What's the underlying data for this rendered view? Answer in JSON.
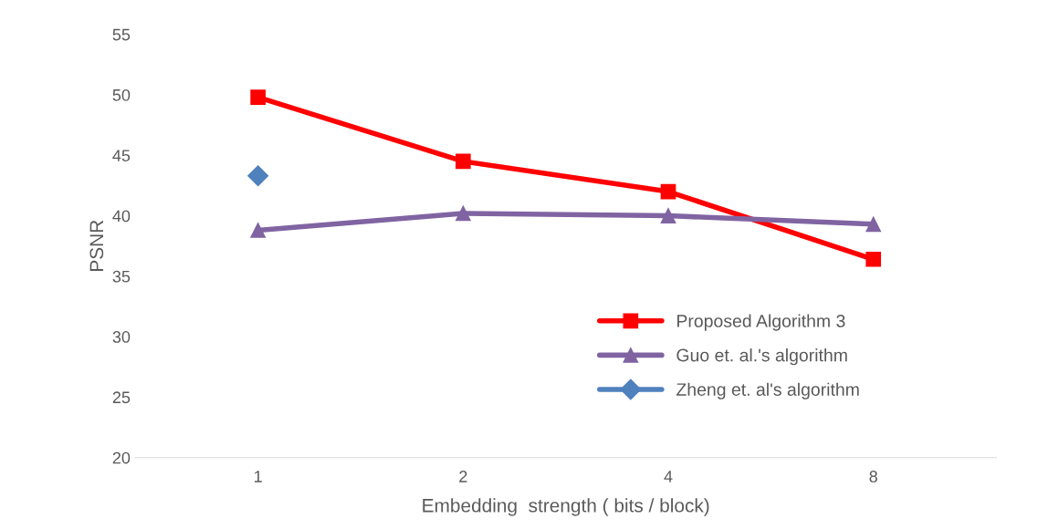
{
  "chart_data": {
    "type": "line",
    "xlabel": "Embedding  strength ( bits / block)",
    "ylabel": "PSNR",
    "categories": [
      "1",
      "2",
      "4",
      "8"
    ],
    "series": [
      {
        "name": "Proposed Algorithm 3",
        "color": "#ff0000",
        "marker": "square",
        "values": [
          49.8,
          44.5,
          42.0,
          36.4
        ]
      },
      {
        "name": "Guo et. al.'s algorithm",
        "color": "#8064a2",
        "marker": "triangle",
        "values": [
          38.8,
          40.2,
          40.0,
          39.3
        ]
      },
      {
        "name": "Zheng et. al's algorithm",
        "color": "#4f81bd",
        "marker": "diamond",
        "values": [
          43.3,
          null,
          null,
          null
        ]
      }
    ],
    "ylim": [
      20,
      55
    ],
    "yticks": [
      20,
      25,
      30,
      35,
      40,
      45,
      50,
      55
    ],
    "grid": false,
    "legend": "lower right"
  }
}
